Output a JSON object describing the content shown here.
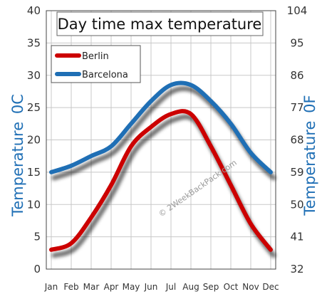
{
  "chart_data": {
    "type": "line",
    "title": "Day time max temperature",
    "categories": [
      "Jan",
      "Feb",
      "Mar",
      "Apr",
      "May",
      "Jun",
      "Jul",
      "Aug",
      "Sep",
      "Oct",
      "Nov",
      "Dec"
    ],
    "ylabel_left": "Temperature",
    "ylabel_left_unit": "0C",
    "ylabel_right": "Temperature",
    "ylabel_right_unit": "0F",
    "ylim": [
      0,
      40
    ],
    "yticks_left": [
      0,
      5,
      10,
      15,
      20,
      25,
      30,
      35,
      40
    ],
    "yticks_right": [
      32,
      41,
      50,
      59,
      68,
      77,
      86,
      95,
      104
    ],
    "grid": true,
    "legend_position": "top-left",
    "series": [
      {
        "name": "Berlin",
        "color": "#cc0000",
        "values": [
          3,
          4,
          8,
          13,
          19,
          22,
          24,
          24,
          19,
          13,
          7,
          3
        ]
      },
      {
        "name": "Barcelona",
        "color": "#1f6fb5",
        "values": [
          15,
          16,
          17.5,
          19,
          22.5,
          26,
          28.5,
          28.5,
          26,
          22.5,
          18,
          15
        ]
      }
    ],
    "watermark": "© 2WeekBackPack.com"
  }
}
